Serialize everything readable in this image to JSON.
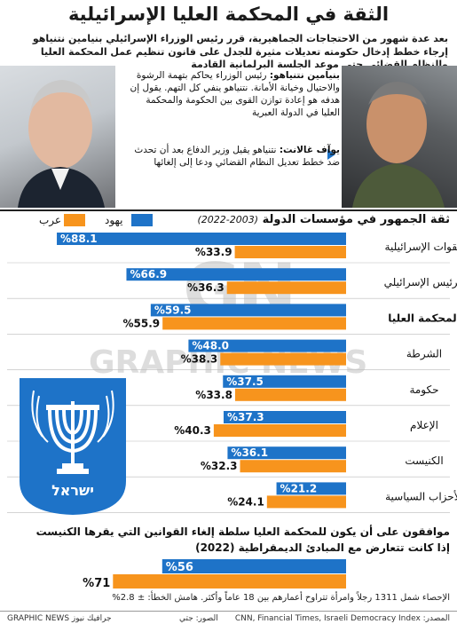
{
  "title": "الثقة في المحكمة العليا الإسرائيلية",
  "intro": "بعد عدة شهور من الاحتجاجات الجماهيرية، قرر رئيس الوزراء الإسرائيلي بنيامين نتنياهو إرجاء خطط إدخال حكومته تعديلات مثيرة للجدل على قانون تنظيم عمل المحكمة العليا والنظام القضائي حتى موعد الجلسة البرلمانية القادمة",
  "quotes": [
    {
      "name": "بنيامين نتنياهو:",
      "text": "رئيس الوزراء يحاكم بتهمة الرشوة والاحتيال وخيانة الأمانة. نتنياهو ينفي كل التهم. يقول إن هدفه هو إعادة توازن القوى بين الحكومة والمحكمة العليا في الدولة العبرية"
    },
    {
      "name": "يوآف غالانت:",
      "text": "نتنياهو يقيل وزير الدفاع بعد أن تحدث ضد خطط تعديل النظام القضائي ودعا إلى إلغائها"
    }
  ],
  "chart_heading": "ثقة الجمهور في مؤسسات الدولة",
  "chart_years": "(2003-2022)",
  "legend": {
    "jews": "يهود",
    "arabs": "عرب"
  },
  "colors": {
    "jews": "#1e73c8",
    "arabs": "#f7941d",
    "jews_text": "#ffffff",
    "arabs_text": "#111111"
  },
  "chart_data": {
    "type": "bar",
    "orientation": "horizontal",
    "title": "ثقة الجمهور في مؤسسات الدولة (2003-2022)",
    "xlim": [
      0,
      100
    ],
    "categories": [
      "القوات الإسرائيلية",
      "الرئيس الإسرائيلي",
      "المحكمة العليا",
      "الشرطة",
      "حكومة",
      "الإعلام",
      "الكنيست",
      "الأحزاب السياسية"
    ],
    "series": [
      {
        "name": "يهود",
        "values": [
          88.1,
          66.9,
          59.5,
          48.0,
          37.5,
          37.3,
          36.1,
          21.2
        ]
      },
      {
        "name": "عرب",
        "values": [
          33.9,
          36.3,
          55.9,
          38.3,
          33.8,
          40.3,
          32.3,
          24.1
        ]
      }
    ],
    "label_format": "%{value}"
  },
  "highlight_category": "المحكمة العليا",
  "question": "موافقون على أن يكون للمحكمة العليا سلطة إلغاء القوانين التي يقرها الكنيست إذا كانت تتعارض مع المبادئ الديمقراطية (2022)",
  "question_data": {
    "type": "bar",
    "orientation": "horizontal",
    "xlim": [
      0,
      100
    ],
    "series": [
      {
        "name": "يهود",
        "values": [
          56
        ]
      },
      {
        "name": "عرب",
        "values": [
          71
        ]
      }
    ],
    "labels": [
      "%56",
      "%71"
    ]
  },
  "footnote": "الإحصاء شمل 1311 رجلاً وامرأة تتراوح أعمارهم بين 18 عاماً وأكثر. هامش الخطأ: ± 2.8%",
  "footer": {
    "source": "المصدر: CNN, Financial Times, Israeli Democracy Index",
    "credit": "الصور: جتي",
    "brand": "GRAPHIC NEWS جرافيك نيوز"
  },
  "watermark": {
    "logo": "GN",
    "text": "GRAPHIC NEWS"
  },
  "emblem_text": "ישראל"
}
